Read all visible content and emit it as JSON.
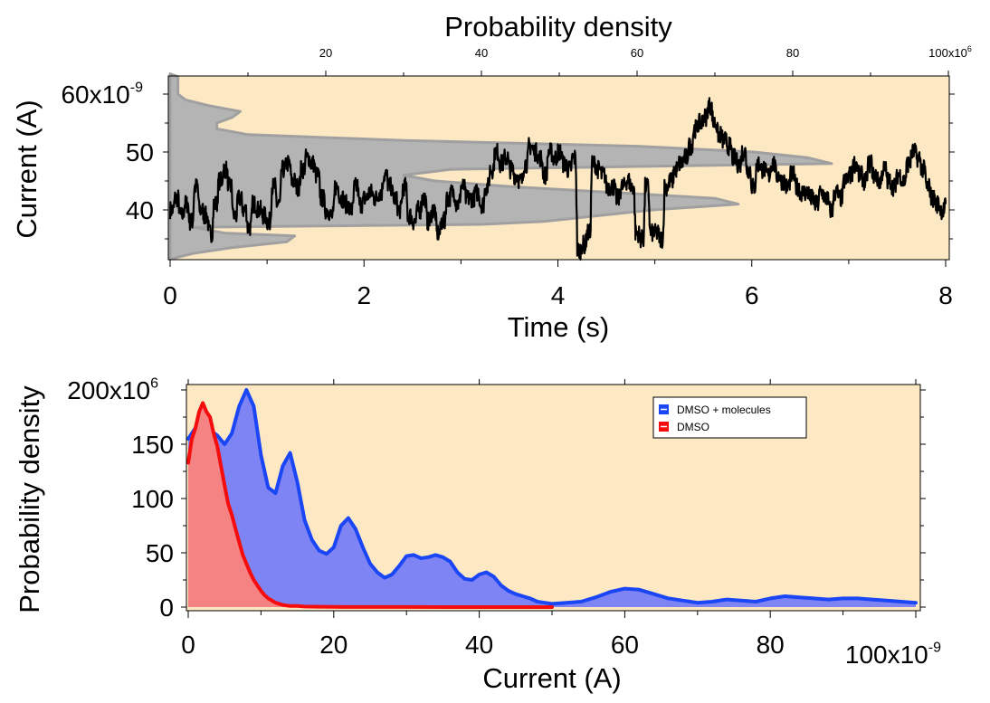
{
  "chart_data": [
    {
      "type": "line",
      "xlabel": "Time (s)",
      "ylabel": "Current (A)",
      "top_xlabel": "Probability density",
      "xlim": [
        0,
        8
      ],
      "ylim": [
        31,
        65
      ],
      "x_ticks": [
        "0",
        "2",
        "4",
        "6",
        "8"
      ],
      "y_ticks": [
        "40",
        "50",
        "60x10"
      ],
      "y_exponent": "-9",
      "y_minor_ticks": [
        35,
        45,
        55
      ],
      "top_xlim": [
        0,
        100
      ],
      "top_x_ticks": [
        "20",
        "40",
        "60",
        "80",
        "100x10"
      ],
      "top_x_exponent": "6",
      "background": "#fde8c4",
      "series": [
        {
          "color": "#000000",
          "x": [
            0.0,
            0.05,
            0.1,
            0.15,
            0.2,
            0.25,
            0.3,
            0.35,
            0.4,
            0.45,
            0.5,
            0.55,
            0.6,
            0.65,
            0.7,
            0.75,
            0.8,
            0.85,
            0.9,
            0.95,
            1.0,
            1.05,
            1.1,
            1.15,
            1.2,
            1.25,
            1.3,
            1.35,
            1.4,
            1.45,
            1.5,
            1.55,
            1.6,
            1.65,
            1.7,
            1.75,
            1.8,
            1.85,
            1.9,
            1.95,
            2.0,
            2.05,
            2.1,
            2.15,
            2.2,
            2.25,
            2.3,
            2.35,
            2.4,
            2.45,
            2.5,
            2.55,
            2.6,
            2.65,
            2.7,
            2.75,
            2.8,
            2.85,
            2.9,
            2.95,
            3.0,
            3.05,
            3.1,
            3.15,
            3.2,
            3.25,
            3.3,
            3.35,
            3.4,
            3.45,
            3.5,
            3.55,
            3.6,
            3.65,
            3.7,
            3.75,
            3.8,
            3.85,
            3.9,
            3.95,
            4.0,
            4.05,
            4.1,
            4.15,
            4.2,
            4.25,
            4.3,
            4.35,
            4.4,
            4.45,
            4.5,
            4.55,
            4.6,
            4.65,
            4.7,
            4.75,
            4.8,
            4.85,
            4.9,
            4.95,
            5.0,
            5.05,
            5.1,
            5.15,
            5.2,
            5.25,
            5.3,
            5.35,
            5.4,
            5.45,
            5.5,
            5.55,
            5.6,
            5.65,
            5.7,
            5.75,
            5.8,
            5.85,
            5.9,
            5.95,
            6.0,
            6.05,
            6.1,
            6.15,
            6.2,
            6.25,
            6.3,
            6.35,
            6.4,
            6.45,
            6.5,
            6.55,
            6.6,
            6.65,
            6.7,
            6.75,
            6.8,
            6.85,
            6.9,
            6.95,
            7.0,
            7.05,
            7.1,
            7.15,
            7.2,
            7.25,
            7.3,
            7.35,
            7.4,
            7.45,
            7.5,
            7.55,
            7.6,
            7.65,
            7.7,
            7.75,
            7.8,
            7.85,
            7.9,
            7.95,
            8.0
          ],
          "y": [
            40,
            42,
            39,
            41,
            38,
            44,
            40,
            39,
            36,
            41,
            45,
            47,
            44,
            39,
            42,
            40,
            37,
            41,
            40,
            39,
            38,
            44,
            41,
            47,
            48,
            45,
            44,
            47,
            49,
            48,
            46,
            42,
            40,
            39,
            44,
            42,
            41,
            40,
            44,
            41,
            42,
            43,
            42,
            43,
            46,
            44,
            42,
            40,
            44,
            39,
            38,
            40,
            42,
            38,
            40,
            36,
            38,
            42,
            43,
            41,
            44,
            42,
            42,
            43,
            41,
            44,
            47,
            50,
            48,
            49,
            47,
            46,
            45,
            48,
            51,
            50,
            49,
            46,
            50,
            49,
            50,
            48,
            47,
            49,
            33,
            34,
            36,
            48,
            47,
            46,
            44,
            44,
            42,
            44,
            45,
            44,
            36,
            35,
            44,
            36,
            36,
            35,
            44,
            45,
            47,
            48,
            49,
            51,
            54,
            55,
            56,
            58,
            55,
            53,
            52,
            51,
            49,
            48,
            50,
            47,
            44,
            48,
            47,
            46,
            48,
            46,
            45,
            44,
            46,
            44,
            43,
            43,
            42,
            41,
            43,
            42,
            40,
            43,
            42,
            45,
            46,
            48,
            46,
            45,
            48,
            46,
            45,
            47,
            45,
            44,
            46,
            45,
            48,
            50,
            49,
            47,
            44,
            42,
            41,
            40,
            41
          ]
        }
      ],
      "histogram": {
        "color": "#b4b4b4",
        "edge_color": "#a0a0a0",
        "current": [
          31.5,
          32.5,
          33.5,
          34.5,
          35.5,
          36,
          37,
          37.5,
          38,
          39,
          40,
          41,
          42,
          43,
          44,
          45,
          46,
          47,
          47.5,
          48,
          49,
          50,
          51,
          52,
          53,
          54,
          55,
          56,
          57,
          58,
          59,
          60,
          61,
          62,
          63,
          63.5
        ],
        "density": [
          0,
          3,
          8,
          15,
          16,
          7,
          3,
          40,
          48,
          55,
          62,
          73,
          70,
          57,
          44,
          34,
          30,
          36,
          60,
          85,
          82,
          75,
          60,
          30,
          10,
          6,
          6,
          8,
          9,
          5,
          2,
          1,
          1,
          1,
          1,
          0
        ]
      }
    },
    {
      "type": "area",
      "xlabel": "Current (A)",
      "ylabel": "Probability density",
      "xlim": [
        0,
        100
      ],
      "ylim": [
        0,
        205
      ],
      "x_ticks": [
        "0",
        "20",
        "40",
        "60",
        "80"
      ],
      "x_exponent_label": "100x10",
      "x_exponent": "-9",
      "y_ticks": [
        "0",
        "50",
        "100",
        "150",
        "200x10"
      ],
      "y_exponent": "6",
      "background": "#fde8c4",
      "legend": "top-right",
      "series": [
        {
          "name": "DMSO + molecules",
          "color": "#1a46f5",
          "fill": "#7f84f5",
          "x": [
            0,
            1,
            2,
            3,
            4,
            5,
            6,
            7,
            8,
            9,
            10,
            11,
            12,
            13,
            14,
            15,
            16,
            17,
            18,
            19,
            20,
            21,
            22,
            23,
            24,
            25,
            26,
            27,
            28,
            29,
            30,
            31,
            32,
            33,
            34,
            35,
            36,
            37,
            38,
            39,
            40,
            41,
            42,
            43,
            44,
            45,
            46,
            47,
            48,
            49,
            50,
            52,
            54,
            56,
            58,
            60,
            62,
            64,
            66,
            68,
            70,
            72,
            74,
            76,
            78,
            80,
            82,
            84,
            86,
            88,
            90,
            92,
            94,
            96,
            98,
            100
          ],
          "y": [
            155,
            165,
            165,
            163,
            158,
            150,
            160,
            185,
            200,
            185,
            140,
            110,
            105,
            130,
            142,
            115,
            80,
            62,
            52,
            49,
            55,
            75,
            82,
            72,
            55,
            40,
            32,
            27,
            30,
            38,
            47,
            48,
            45,
            46,
            48,
            46,
            42,
            32,
            26,
            25,
            30,
            32,
            28,
            20,
            15,
            12,
            10,
            8,
            5,
            4,
            3,
            4,
            5,
            9,
            14,
            17,
            16,
            12,
            8,
            6,
            4,
            5,
            7,
            6,
            5,
            8,
            10,
            9,
            8,
            7,
            8,
            8,
            7,
            6,
            5,
            4
          ]
        },
        {
          "name": "DMSO",
          "color": "#f50d0d",
          "fill": "#f58383",
          "x": [
            0,
            0.5,
            1,
            1.5,
            2,
            2.5,
            3,
            3.5,
            4,
            4.5,
            5,
            5.5,
            6,
            6.5,
            7,
            7.5,
            8,
            8.5,
            9,
            9.5,
            10,
            10.5,
            11,
            12,
            13,
            14,
            15,
            16,
            18,
            20,
            25,
            30,
            35,
            40,
            45,
            50
          ],
          "y": [
            133,
            155,
            165,
            180,
            188,
            180,
            175,
            160,
            148,
            130,
            112,
            95,
            85,
            72,
            60,
            48,
            40,
            32,
            25,
            20,
            15,
            11,
            8,
            4,
            2,
            1,
            1,
            0.5,
            0.3,
            0.2,
            0.1,
            0.1,
            0,
            0,
            0,
            0
          ]
        }
      ]
    }
  ]
}
